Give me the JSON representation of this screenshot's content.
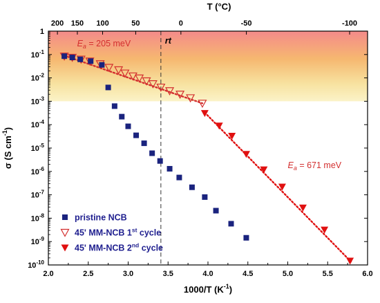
{
  "chart_data": {
    "type": "scatter",
    "x_axis": {
      "label_main": "1000/T (K",
      "label_sup": "-1",
      "label_end": ")",
      "min": 2.0,
      "max": 6.0,
      "ticks": [
        {
          "v": 2.0,
          "t": "2.0"
        },
        {
          "v": 2.5,
          "t": "2.5"
        },
        {
          "v": 3.0,
          "t": "3.0"
        },
        {
          "v": 3.5,
          "t": "3.5"
        },
        {
          "v": 4.0,
          "t": "4.0"
        },
        {
          "v": 4.5,
          "t": "4.5"
        },
        {
          "v": 5.0,
          "t": "5.0"
        },
        {
          "v": 5.5,
          "t": "5.5"
        },
        {
          "v": 6.0,
          "t": "6.0"
        }
      ]
    },
    "y_axis": {
      "label_main": "σ (S cm",
      "label_sup": "-1",
      "label_end": ")",
      "scale": "log",
      "min_exp": -10,
      "max_exp": 0,
      "ticks": [
        {
          "e": 0,
          "base": "1",
          "sup": ""
        },
        {
          "e": -1,
          "base": "10",
          "sup": "-1"
        },
        {
          "e": -2,
          "base": "10",
          "sup": "-2"
        },
        {
          "e": -3,
          "base": "10",
          "sup": "-3"
        },
        {
          "e": -4,
          "base": "10",
          "sup": "-4"
        },
        {
          "e": -5,
          "base": "10",
          "sup": "-5"
        },
        {
          "e": -6,
          "base": "10",
          "sup": "-6"
        },
        {
          "e": -7,
          "base": "10",
          "sup": "-7"
        },
        {
          "e": -8,
          "base": "10",
          "sup": "-8"
        },
        {
          "e": -9,
          "base": "10",
          "sup": "-9"
        },
        {
          "e": -10,
          "base": "10",
          "sup": "-10"
        }
      ]
    },
    "top_axis": {
      "label": "T (°C)",
      "ticks": [
        {
          "c": 200,
          "t": "200"
        },
        {
          "c": 150,
          "t": "150"
        },
        {
          "c": 100,
          "t": "100"
        },
        {
          "c": 50,
          "t": "50"
        },
        {
          "c": 0,
          "t": "0"
        },
        {
          "c": -50,
          "t": "-50"
        },
        {
          "c": -100,
          "t": "-100"
        }
      ]
    },
    "shaded_region": {
      "y_from": 0.001,
      "y_to": 1,
      "colors": [
        "#f48a8a",
        "#f6b870",
        "#f7e2a0",
        "#fbf3c8"
      ]
    },
    "rt_line": {
      "x": 3.41,
      "label": "rt"
    },
    "series": [
      {
        "name": "pristine NCB",
        "marker": "square",
        "color": "#1a237e",
        "points": [
          {
            "x": 2.2,
            "y": 0.085
          },
          {
            "x": 2.3,
            "y": 0.075
          },
          {
            "x": 2.4,
            "y": 0.062
          },
          {
            "x": 2.53,
            "y": 0.052
          },
          {
            "x": 2.67,
            "y": 0.036
          },
          {
            "x": 2.75,
            "y": 0.0039
          },
          {
            "x": 2.83,
            "y": 0.00062
          },
          {
            "x": 2.92,
            "y": 0.00022
          },
          {
            "x": 3.0,
            "y": 8.5e-05
          },
          {
            "x": 3.1,
            "y": 3.5e-05
          },
          {
            "x": 3.2,
            "y": 1.6e-05
          },
          {
            "x": 3.3,
            "y": 6e-06
          },
          {
            "x": 3.4,
            "y": 2.8e-06
          },
          {
            "x": 3.52,
            "y": 1.3e-06
          },
          {
            "x": 3.64,
            "y": 5.5e-07
          },
          {
            "x": 3.8,
            "y": 2.1e-07
          },
          {
            "x": 3.96,
            "y": 8e-08
          },
          {
            "x": 4.1,
            "y": 2.1e-08
          },
          {
            "x": 4.29,
            "y": 5.8e-09
          },
          {
            "x": 4.48,
            "y": 1.45e-09
          }
        ]
      },
      {
        "name": "45' MM-NCB 1st cycle",
        "label_main": "45' MM-NCB 1",
        "label_sup": "st",
        "label_end": " cycle",
        "marker": "triangle-down-open",
        "color": "#d32f2f",
        "points": [
          {
            "x": 2.2,
            "y": 0.085
          },
          {
            "x": 2.3,
            "y": 0.075
          },
          {
            "x": 2.41,
            "y": 0.063
          },
          {
            "x": 2.52,
            "y": 0.052
          },
          {
            "x": 2.65,
            "y": 0.04
          },
          {
            "x": 2.76,
            "y": 0.028
          },
          {
            "x": 2.88,
            "y": 0.022
          },
          {
            "x": 2.96,
            "y": 0.016
          },
          {
            "x": 3.06,
            "y": 0.012
          },
          {
            "x": 3.14,
            "y": 0.0098
          },
          {
            "x": 3.23,
            "y": 0.0074
          },
          {
            "x": 3.31,
            "y": 0.0056
          },
          {
            "x": 3.41,
            "y": 0.004
          },
          {
            "x": 3.52,
            "y": 0.0028
          },
          {
            "x": 3.65,
            "y": 0.002
          },
          {
            "x": 3.78,
            "y": 0.0014
          },
          {
            "x": 3.93,
            "y": 0.00082
          }
        ]
      },
      {
        "name": "45' MM-NCB 2nd cycle",
        "label_main": "45' MM-NCB 2",
        "label_sup": "nd",
        "label_end": " cycle",
        "marker": "triangle-down-filled",
        "color": "#e01010",
        "points": [
          {
            "x": 3.96,
            "y": 0.00031
          },
          {
            "x": 4.14,
            "y": 9e-05
          },
          {
            "x": 4.3,
            "y": 3.3e-05
          },
          {
            "x": 4.48,
            "y": 5.5e-06
          },
          {
            "x": 4.7,
            "y": 1.2e-06
          },
          {
            "x": 4.93,
            "y": 2.2e-07
          },
          {
            "x": 5.19,
            "y": 2.8e-08
          },
          {
            "x": 5.46,
            "y": 3.2e-09
          },
          {
            "x": 5.78,
            "y": 1.5e-10
          }
        ]
      }
    ],
    "fits": [
      {
        "name": "fit-ea-205",
        "color": "#d32f2f",
        "from": {
          "x": 2.2,
          "y": 0.09
        },
        "to": {
          "x": 3.93,
          "y": 0.00082
        }
      },
      {
        "name": "fit-ea-671",
        "color": "#e01010",
        "from": {
          "x": 3.96,
          "y": 0.00033
        },
        "to": {
          "x": 5.8,
          "y": 1.3e-10
        }
      }
    ],
    "annotations": [
      {
        "name": "ea-205-label",
        "sym": "E",
        "sub": "a",
        "text": " = 205 meV",
        "x": 2.36,
        "y": 0.22,
        "color": "#d32f2f"
      },
      {
        "name": "ea-671-label",
        "sym": "E",
        "sub": "a",
        "text": " = 671 meV",
        "x": 5.0,
        "y": 1.4e-06,
        "color": "#d32f2f"
      }
    ],
    "legend": {
      "placement": "bottom-left"
    }
  }
}
